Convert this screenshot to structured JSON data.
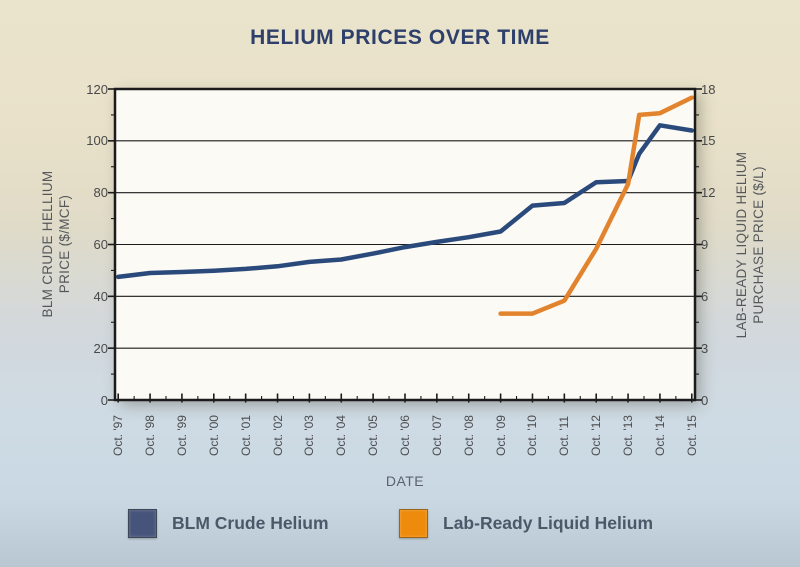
{
  "title": "HELIUM PRICES OVER TIME",
  "chart_data": {
    "type": "line",
    "title": "HELIUM PRICES OVER TIME",
    "grid": "horizontal-major",
    "legend_position": "bottom",
    "x_axis": {
      "label": "DATE",
      "tick_years": [
        1997,
        1998,
        1999,
        2000,
        2001,
        2002,
        2003,
        2004,
        2005,
        2006,
        2007,
        2008,
        2009,
        2010,
        2011,
        2012,
        2013,
        2014,
        2015
      ],
      "tick_labels": [
        "Oct. '97",
        "Oct. '98",
        "Oct. '99",
        "Oct. '00",
        "Oct. '01",
        "Oct. '02",
        "Oct. '03",
        "Oct. '04",
        "Oct. '05",
        "Oct. '06",
        "Oct. '07",
        "Oct. '08",
        "Oct. '09",
        "Oct. '10",
        "Oct. '11",
        "Oct. '12",
        "Oct. '13",
        "Oct. '14",
        "Oct. '15"
      ]
    },
    "left_axis": {
      "label_line1": "BLM CRUDE HELLIUM",
      "label_line2": "PRICE ($/MCF)",
      "range": [
        0,
        120
      ],
      "ticks": [
        0,
        20,
        40,
        60,
        80,
        100,
        120
      ],
      "minor_step": 10
    },
    "right_axis": {
      "label_line1": "LAB-READY LIQUID HELIUM",
      "label_line2": "PURCHASE PRICE ($/L)",
      "range": [
        0,
        18
      ],
      "ticks": [
        0,
        3,
        6,
        9,
        12,
        15,
        18
      ],
      "minor_step": 1.5
    },
    "series": [
      {
        "name": "BLM Crude Helium",
        "axis": "left",
        "color": "#2b4a7c",
        "points": [
          [
            1997,
            47.5
          ],
          [
            1998,
            49
          ],
          [
            1999,
            49.4
          ],
          [
            2000,
            49.9
          ],
          [
            2001,
            50.6
          ],
          [
            2002,
            51.6
          ],
          [
            2003,
            53.3
          ],
          [
            2004,
            54.2
          ],
          [
            2005,
            56.5
          ],
          [
            2006,
            59
          ],
          [
            2007,
            61
          ],
          [
            2008,
            62.8
          ],
          [
            2009,
            65
          ],
          [
            2010,
            75
          ],
          [
            2011,
            76
          ],
          [
            2012,
            84
          ],
          [
            2013,
            84.5
          ],
          [
            2013.35,
            95
          ],
          [
            2014,
            106
          ],
          [
            2015,
            104
          ]
        ]
      },
      {
        "name": "Lab-Ready Liquid Helium",
        "axis": "right",
        "color": "#e2832e",
        "points": [
          [
            2009,
            5
          ],
          [
            2010,
            5
          ],
          [
            2011,
            5.75
          ],
          [
            2012,
            8.75
          ],
          [
            2013,
            12.5
          ],
          [
            2013.35,
            16.5
          ],
          [
            2014,
            16.6
          ],
          [
            2015,
            17.5
          ]
        ]
      }
    ]
  },
  "legend": {
    "items": [
      {
        "label": "BLM Crude Helium",
        "color": "#46547b"
      },
      {
        "label": "Lab-Ready Liquid Helium",
        "color": "#ef8b0c"
      }
    ]
  },
  "colors": {
    "plot_background": "#fcfaf4",
    "frame": "#1b1b1b",
    "title_text": "#2d3f6a"
  }
}
